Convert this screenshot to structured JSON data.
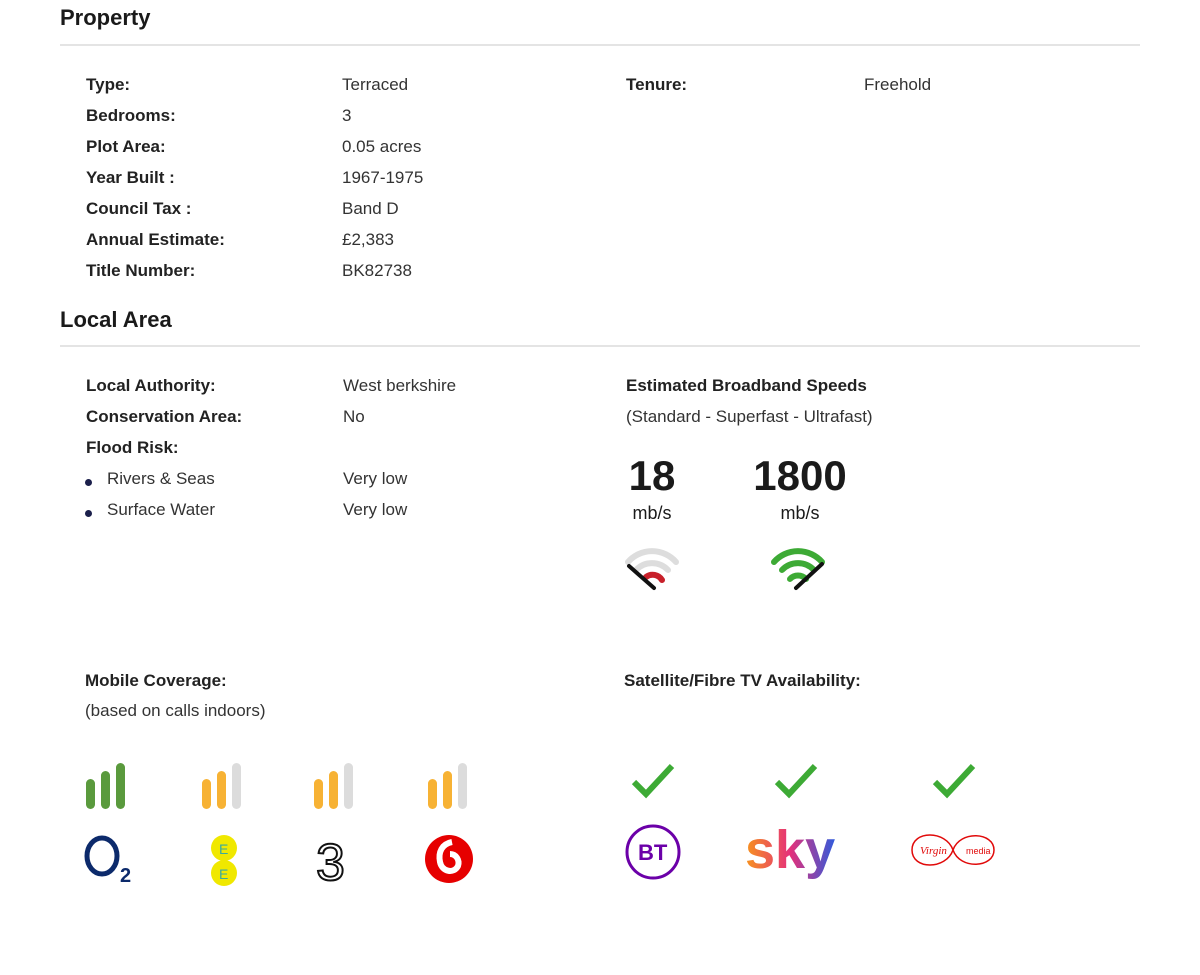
{
  "property": {
    "title": "Property",
    "rows": [
      {
        "label": "Type:",
        "value": "Terraced"
      },
      {
        "label": "Bedrooms:",
        "value": "3"
      },
      {
        "label": "Plot Area:",
        "value": "0.05 acres"
      },
      {
        "label": "Year Built :",
        "value": "1967-1975"
      },
      {
        "label": "Council Tax :",
        "value": "Band D"
      },
      {
        "label": "Annual Estimate:",
        "value": "£2,383"
      },
      {
        "label": "Title Number:",
        "value": "BK82738"
      }
    ],
    "tenure": {
      "label": "Tenure:",
      "value": "Freehold"
    }
  },
  "local_area": {
    "title": "Local Area",
    "rows": [
      {
        "label": "Local Authority:",
        "value": "West berkshire"
      },
      {
        "label": "Conservation Area:",
        "value": "No"
      },
      {
        "label": "Flood Risk:",
        "value": ""
      }
    ],
    "flood": [
      {
        "label": "Rivers & Seas",
        "value": "Very low"
      },
      {
        "label": "Surface Water",
        "value": "Very low"
      }
    ],
    "broadband": {
      "title": "Estimated Broadband Speeds",
      "subtitle": "(Standard - Superfast - Ultrafast)",
      "speeds": [
        {
          "value": "18",
          "unit": "mb/s",
          "gauge_color": "#c8202a",
          "level": "low"
        },
        {
          "value": "1800",
          "unit": "mb/s",
          "gauge_color": "#3daa35",
          "level": "high"
        }
      ]
    },
    "mobile": {
      "title": "Mobile Coverage:",
      "subtitle": "(based on calls indoors)",
      "networks": [
        {
          "name": "O2",
          "bars": 3,
          "color": "#5a9a3d"
        },
        {
          "name": "EE",
          "bars": 2,
          "color": "#f7b234"
        },
        {
          "name": "Three",
          "bars": 2,
          "color": "#f7b234"
        },
        {
          "name": "Vodafone",
          "bars": 2,
          "color": "#f7b234"
        }
      ]
    },
    "tv": {
      "title": "Satellite/Fibre TV Availability:",
      "providers": [
        {
          "name": "BT",
          "available": true
        },
        {
          "name": "sky",
          "available": true
        },
        {
          "name": "Virgin media",
          "available": true
        }
      ]
    }
  }
}
